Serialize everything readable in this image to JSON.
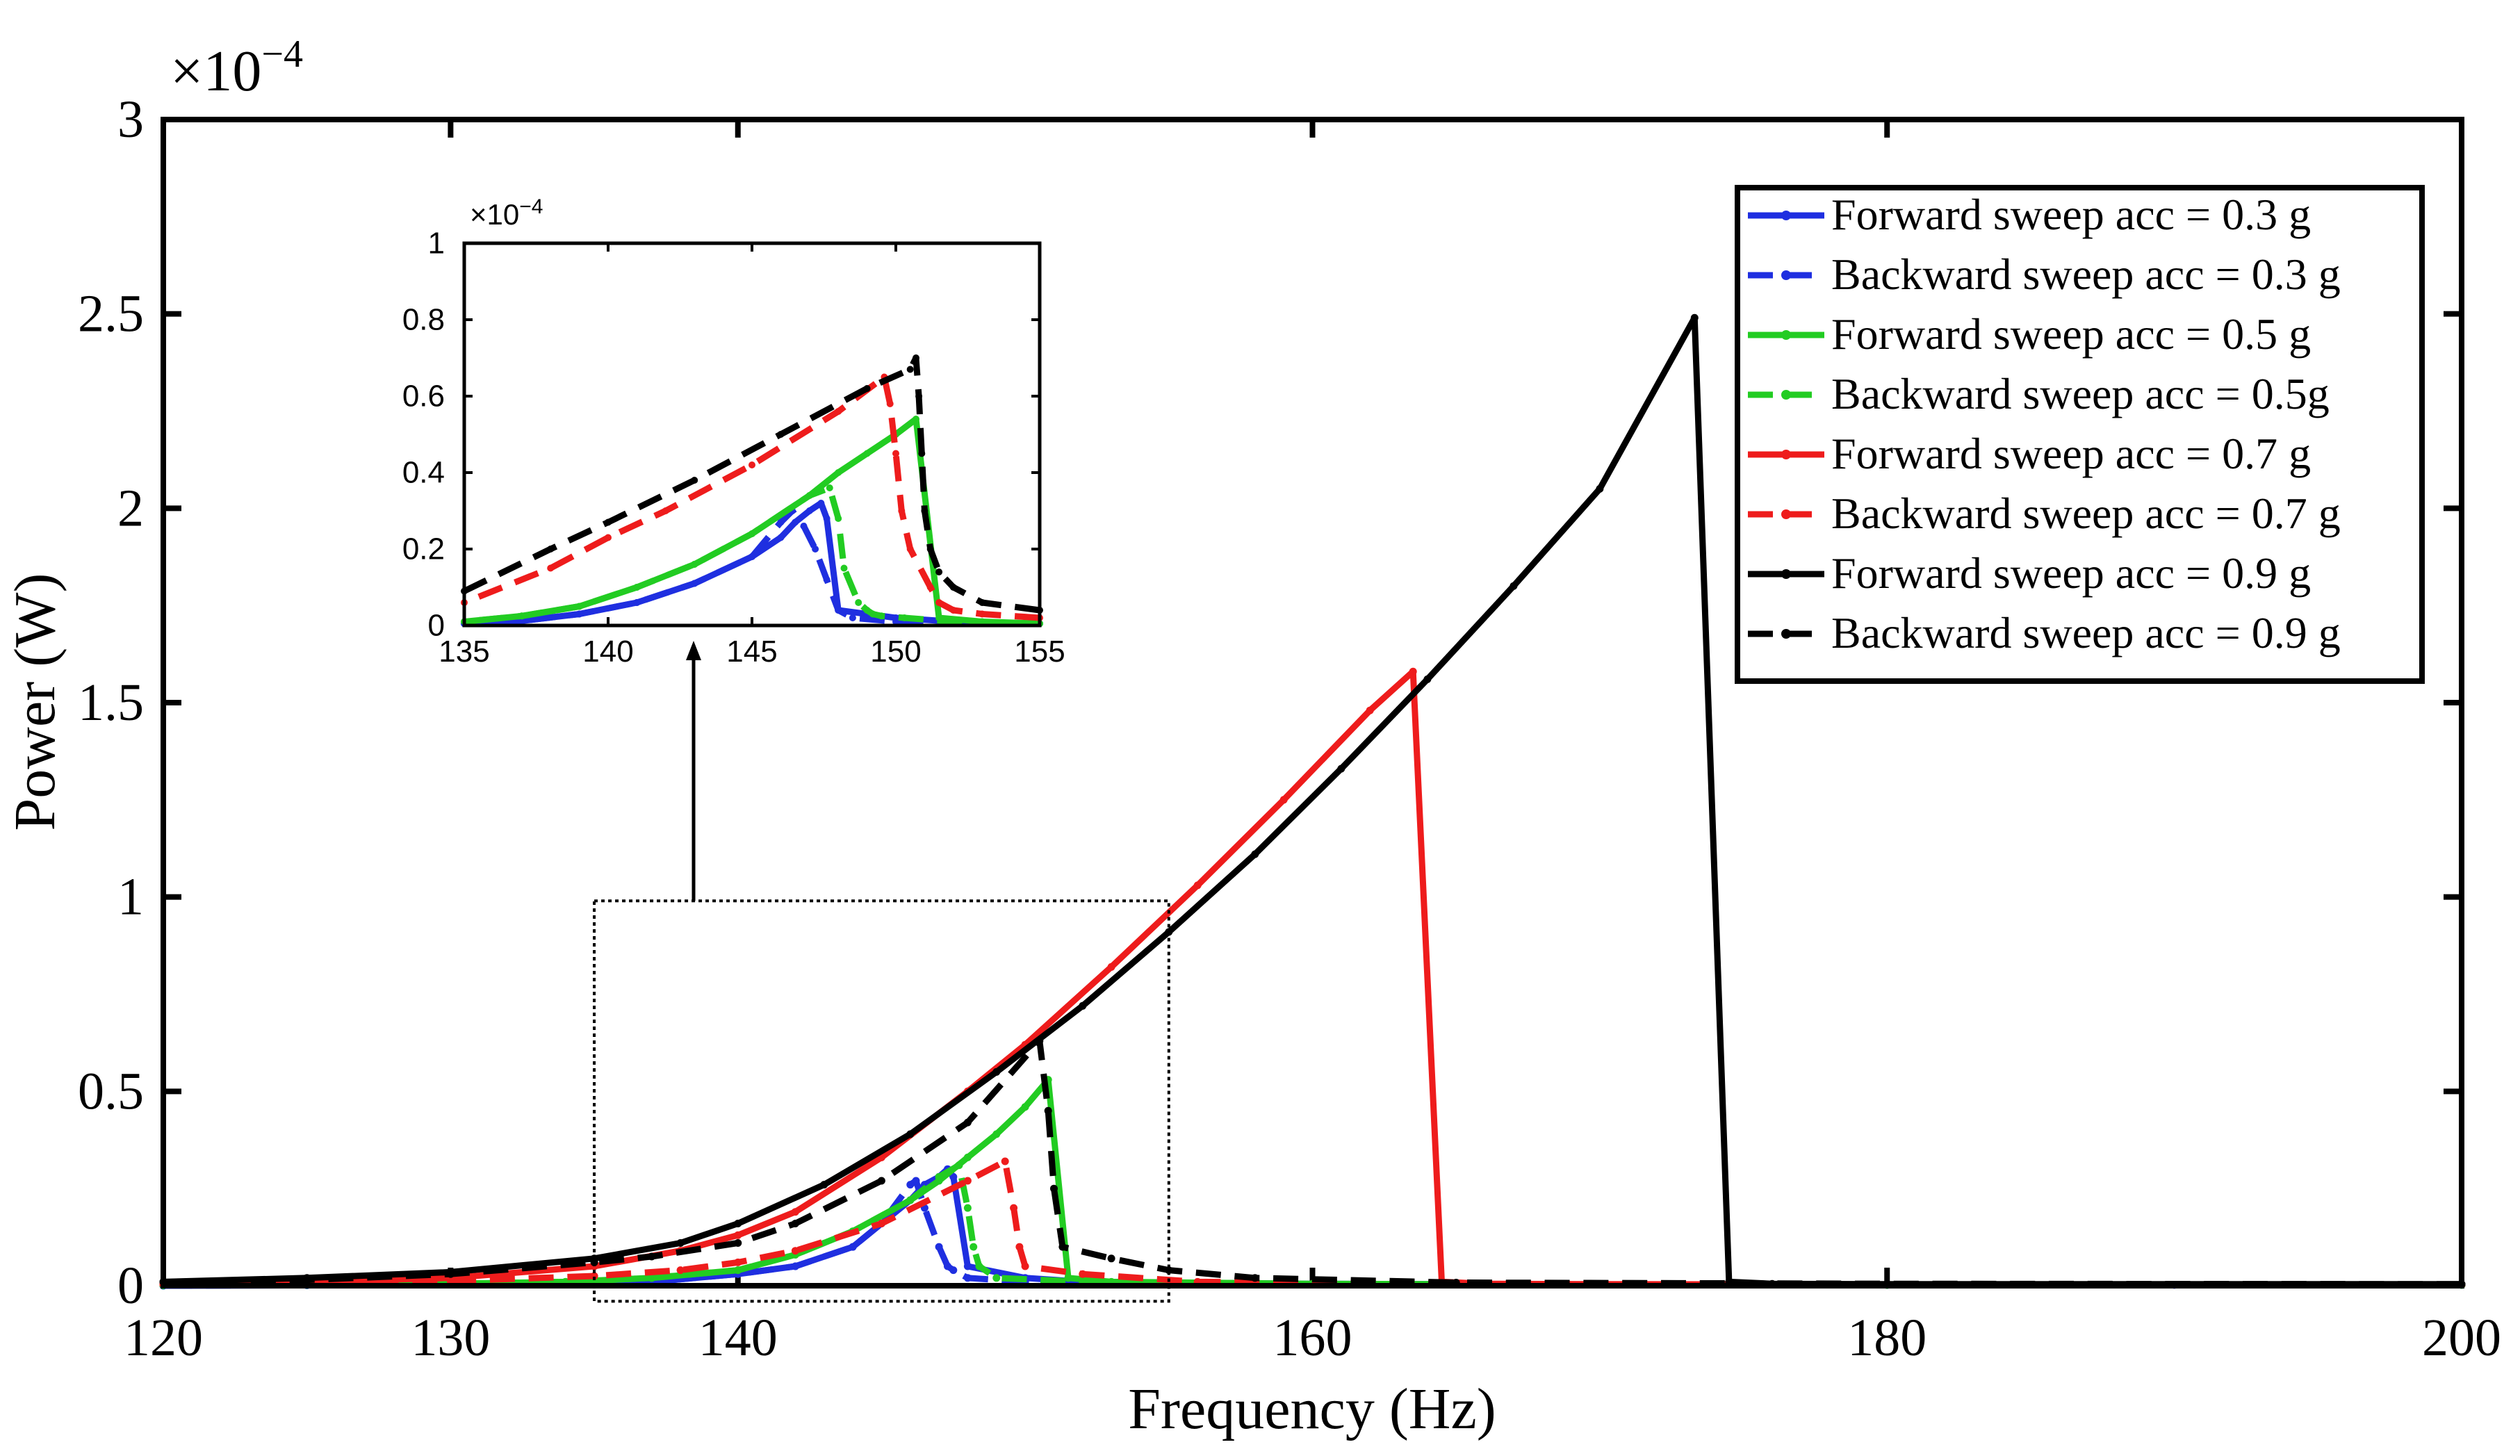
{
  "colors": {
    "blue": "#1f2fe0",
    "green": "#22cc22",
    "red": "#ee1c1c",
    "black": "#000000"
  },
  "chart_data": [
    {
      "type": "line",
      "name": "main",
      "title": "",
      "xlabel": "Frequency (Hz)",
      "ylabel": "Power (W)",
      "exponent_label": "×10",
      "exponent_power": "−4",
      "xlim": [
        120,
        200
      ],
      "ylim": [
        0,
        3
      ],
      "xticks": [
        120,
        130,
        140,
        160,
        180,
        200
      ],
      "xtick_labels": [
        "120",
        "130",
        "140",
        "160",
        "180",
        "200"
      ],
      "yticks": [
        0,
        0.5,
        1,
        1.5,
        2,
        2.5,
        3
      ],
      "ytick_labels": [
        "0",
        "0.5",
        "1",
        "1.5",
        "2",
        "2.5",
        "3"
      ],
      "legend_position": "top-right",
      "legend": [
        {
          "label": "Forward sweep acc = 0.3 g",
          "color": "blue",
          "dash": "solid"
        },
        {
          "label": "Backward sweep acc = 0.3 g",
          "color": "blue",
          "dash": "dashed"
        },
        {
          "label": "Forward sweep acc = 0.5 g",
          "color": "green",
          "dash": "solid"
        },
        {
          "label": "Backward sweep acc = 0.5g",
          "color": "green",
          "dash": "dashed"
        },
        {
          "label": "Forward sweep acc = 0.7 g",
          "color": "red",
          "dash": "solid"
        },
        {
          "label": "Backward sweep acc = 0.7 g",
          "color": "red",
          "dash": "dashed"
        },
        {
          "label": "Forward sweep acc = 0.9 g",
          "color": "black",
          "dash": "solid"
        },
        {
          "label": "Backward sweep acc = 0.9 g",
          "color": "black",
          "dash": "dashed"
        }
      ],
      "series": [
        {
          "name": "Forward sweep acc = 0.3 g",
          "color": "blue",
          "dash": "solid",
          "x": [
            120,
            125,
            130,
            134,
            137,
            140,
            142,
            144,
            145,
            146,
            146.5,
            147,
            147.3,
            147.5,
            148,
            150,
            152,
            160,
            170,
            180,
            190,
            200
          ],
          "y": [
            0.0,
            0.001,
            0.003,
            0.006,
            0.01,
            0.03,
            0.05,
            0.1,
            0.16,
            0.22,
            0.26,
            0.28,
            0.3,
            0.28,
            0.05,
            0.02,
            0.01,
            0.005,
            0.003,
            0.002,
            0.002,
            0.002
          ]
        },
        {
          "name": "Backward sweep acc = 0.3 g",
          "color": "blue",
          "dash": "dashed",
          "x": [
            200,
            180,
            160,
            150,
            148,
            147.5,
            147.3,
            147,
            146.5,
            146.2,
            146,
            145,
            144,
            142,
            140,
            137,
            134,
            130,
            120
          ],
          "y": [
            0.002,
            0.002,
            0.004,
            0.01,
            0.02,
            0.04,
            0.05,
            0.1,
            0.2,
            0.27,
            0.26,
            0.16,
            0.1,
            0.05,
            0.03,
            0.01,
            0.006,
            0.003,
            0.0
          ]
        },
        {
          "name": "Forward sweep acc = 0.5 g",
          "color": "green",
          "dash": "solid",
          "x": [
            120,
            125,
            130,
            134,
            137,
            140,
            142,
            144,
            146,
            147,
            148,
            149,
            150,
            150.8,
            151.5,
            153,
            160,
            170,
            180,
            200
          ],
          "y": [
            0.001,
            0.002,
            0.005,
            0.01,
            0.02,
            0.04,
            0.08,
            0.14,
            0.22,
            0.27,
            0.33,
            0.39,
            0.46,
            0.53,
            0.02,
            0.01,
            0.005,
            0.003,
            0.002,
            0.002
          ]
        },
        {
          "name": "Backward sweep acc = 0.5g",
          "color": "green",
          "dash": "dashed",
          "x": [
            200,
            180,
            160,
            152,
            149,
            148.4,
            148.2,
            148,
            147.7,
            147,
            146,
            144,
            142,
            140,
            137,
            134,
            130,
            120
          ],
          "y": [
            0.002,
            0.002,
            0.005,
            0.01,
            0.02,
            0.05,
            0.1,
            0.2,
            0.31,
            0.28,
            0.22,
            0.14,
            0.08,
            0.04,
            0.02,
            0.01,
            0.005,
            0.001
          ]
        },
        {
          "name": "Forward sweep acc = 0.7 g",
          "color": "red",
          "dash": "solid",
          "x": [
            120,
            125,
            130,
            135,
            138,
            140,
            142,
            145,
            148,
            150,
            153,
            156,
            159,
            162,
            163.5,
            164.5,
            166,
            170,
            180,
            200
          ],
          "y": [
            0.005,
            0.01,
            0.02,
            0.05,
            0.09,
            0.13,
            0.19,
            0.33,
            0.5,
            0.62,
            0.82,
            1.03,
            1.25,
            1.48,
            1.58,
            0.01,
            0.005,
            0.004,
            0.003,
            0.003
          ]
        },
        {
          "name": "Backward sweep acc = 0.7 g",
          "color": "red",
          "dash": "dashed",
          "x": [
            200,
            180,
            165,
            156,
            152,
            150,
            149.8,
            149.6,
            149.3,
            148,
            145,
            142,
            140,
            138,
            135,
            130,
            125,
            120
          ],
          "y": [
            0.003,
            0.004,
            0.006,
            0.01,
            0.03,
            0.05,
            0.1,
            0.2,
            0.32,
            0.27,
            0.16,
            0.09,
            0.06,
            0.04,
            0.025,
            0.012,
            0.006,
            0.003
          ]
        },
        {
          "name": "Forward sweep acc = 0.9 g",
          "color": "black",
          "dash": "solid",
          "x": [
            120,
            125,
            130,
            135,
            138,
            140,
            143,
            146,
            149,
            152,
            155,
            158,
            161,
            164,
            167,
            170,
            173.3,
            174.5,
            176,
            180,
            200
          ],
          "y": [
            0.01,
            0.02,
            0.035,
            0.07,
            0.11,
            0.16,
            0.26,
            0.39,
            0.55,
            0.72,
            0.91,
            1.11,
            1.33,
            1.56,
            1.8,
            2.05,
            2.49,
            0.01,
            0.005,
            0.004,
            0.004
          ]
        },
        {
          "name": "Backward sweep acc = 0.9 g",
          "color": "black",
          "dash": "dashed",
          "x": [
            200,
            180,
            165,
            158,
            155,
            153,
            151.3,
            151,
            150.8,
            150.5,
            148,
            145,
            142,
            140,
            137,
            135,
            130,
            125,
            120
          ],
          "y": [
            0.004,
            0.005,
            0.008,
            0.02,
            0.04,
            0.07,
            0.1,
            0.25,
            0.45,
            0.63,
            0.42,
            0.27,
            0.16,
            0.11,
            0.075,
            0.06,
            0.03,
            0.015,
            0.01
          ]
        }
      ],
      "zoom_box": {
        "x": [
          135,
          155
        ],
        "y": [
          -0.04,
          0.99
        ]
      }
    },
    {
      "type": "line",
      "name": "inset",
      "exponent_label": "×10",
      "exponent_power": "−4",
      "xlim": [
        135,
        155
      ],
      "ylim": [
        0,
        1
      ],
      "xticks": [
        135,
        140,
        145,
        150,
        155
      ],
      "xtick_labels": [
        "135",
        "140",
        "145",
        "150",
        "155"
      ],
      "yticks": [
        0,
        0.2,
        0.4,
        0.6,
        0.8,
        1
      ],
      "ytick_labels": [
        "0",
        "0.2",
        "0.4",
        "0.6",
        "0.8",
        "1"
      ],
      "series": [
        {
          "name": "Forward sweep acc = 0.3 g",
          "color": "blue",
          "dash": "solid",
          "x": [
            135,
            137,
            139,
            141,
            143,
            145,
            146,
            146.5,
            147,
            147.4,
            147.6,
            148,
            150,
            152,
            155
          ],
          "y": [
            0.005,
            0.012,
            0.03,
            0.06,
            0.11,
            0.18,
            0.23,
            0.27,
            0.3,
            0.32,
            0.28,
            0.04,
            0.02,
            0.01,
            0.005
          ]
        },
        {
          "name": "Backward sweep acc = 0.3 g",
          "color": "blue",
          "dash": "dashed",
          "x": [
            155,
            150,
            148.5,
            148,
            147.6,
            147.2,
            146.8,
            146.4,
            146,
            145,
            143,
            141,
            139,
            137,
            135
          ],
          "y": [
            0.005,
            0.01,
            0.02,
            0.04,
            0.12,
            0.2,
            0.26,
            0.3,
            0.27,
            0.18,
            0.11,
            0.06,
            0.03,
            0.012,
            0.005
          ]
        },
        {
          "name": "Forward sweep acc = 0.5 g",
          "color": "green",
          "dash": "solid",
          "x": [
            135,
            137,
            139,
            141,
            143,
            145,
            147,
            148,
            149,
            150,
            150.7,
            151.5,
            153,
            155
          ],
          "y": [
            0.01,
            0.025,
            0.05,
            0.1,
            0.16,
            0.24,
            0.34,
            0.4,
            0.45,
            0.5,
            0.54,
            0.02,
            0.01,
            0.005
          ]
        },
        {
          "name": "Backward sweep acc = 0.5g",
          "color": "green",
          "dash": "dashed",
          "x": [
            155,
            152,
            150.3,
            149.5,
            149.2,
            149,
            148.7,
            148.2,
            148,
            147.7,
            147,
            145,
            143,
            141,
            139,
            137,
            135
          ],
          "y": [
            0.005,
            0.01,
            0.02,
            0.025,
            0.03,
            0.04,
            0.06,
            0.15,
            0.28,
            0.36,
            0.34,
            0.24,
            0.16,
            0.1,
            0.05,
            0.025,
            0.01
          ]
        },
        {
          "name": "Backward sweep acc = 0.7 g",
          "color": "red",
          "dash": "dashed",
          "x": [
            155,
            153,
            152,
            151.5,
            151.2,
            150.5,
            150.2,
            150,
            149.8,
            149.6,
            148,
            145,
            142,
            140,
            138,
            135
          ],
          "y": [
            0.02,
            0.03,
            0.04,
            0.06,
            0.1,
            0.2,
            0.3,
            0.45,
            0.58,
            0.65,
            0.56,
            0.42,
            0.3,
            0.23,
            0.15,
            0.06
          ]
        },
        {
          "name": "Backward sweep acc = 0.9 g",
          "color": "black",
          "dash": "dashed",
          "x": [
            155,
            153,
            152,
            151.5,
            151.2,
            151,
            150.9,
            150.8,
            150.7,
            150.5,
            149,
            146,
            143,
            140,
            138,
            135
          ],
          "y": [
            0.04,
            0.06,
            0.1,
            0.14,
            0.2,
            0.3,
            0.45,
            0.6,
            0.7,
            0.67,
            0.62,
            0.5,
            0.38,
            0.27,
            0.2,
            0.09
          ]
        }
      ]
    }
  ]
}
